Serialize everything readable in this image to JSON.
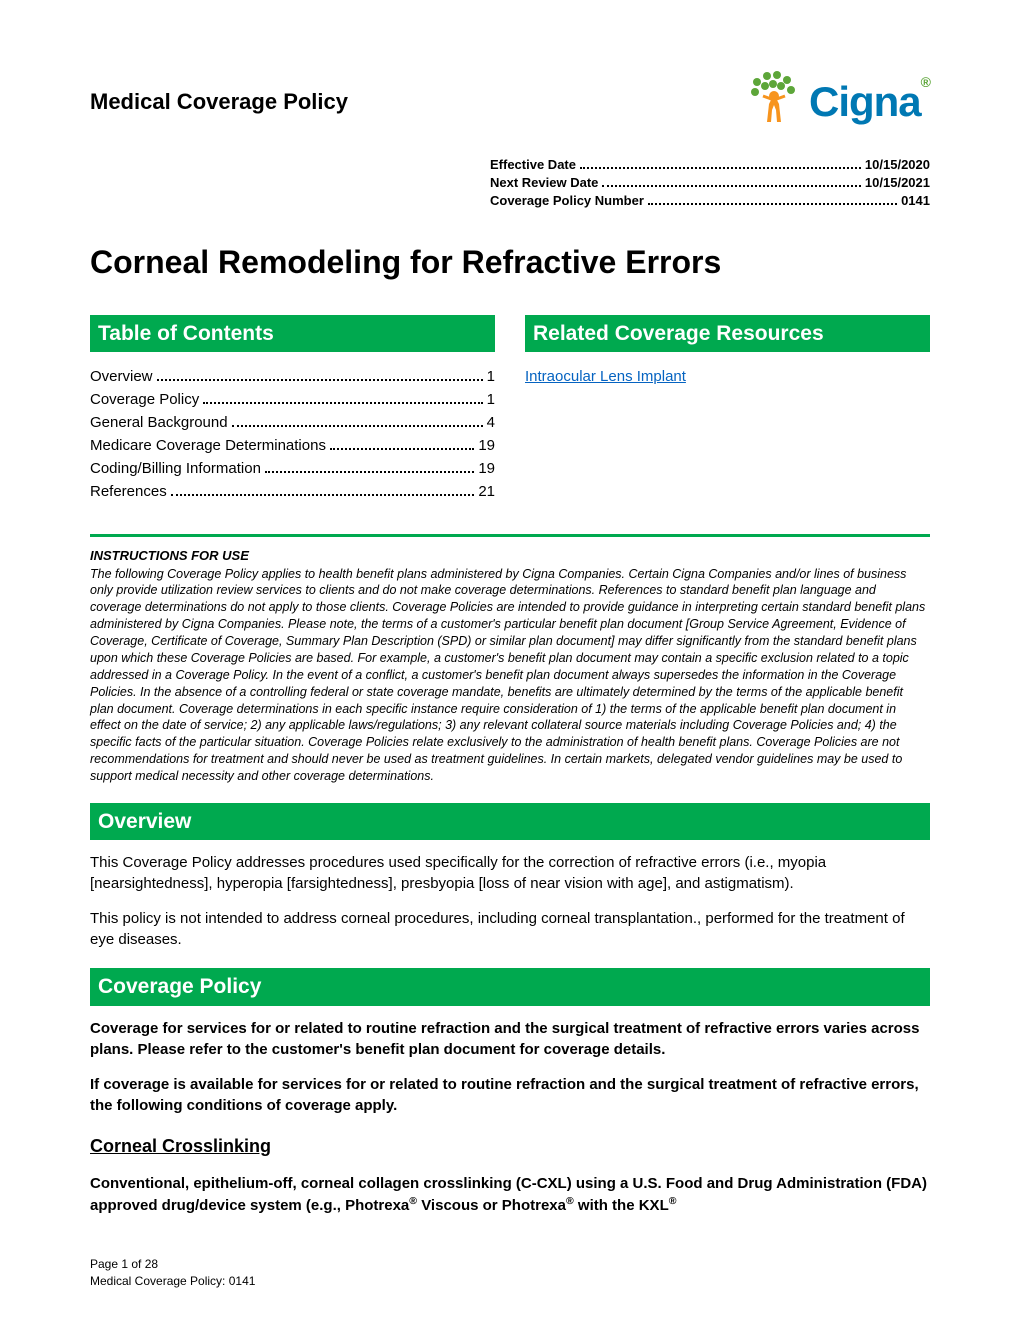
{
  "header": {
    "policy_type": "Medical Coverage Policy",
    "logo_text": "Cigna"
  },
  "meta": [
    {
      "label": "Effective Date",
      "value": "10/15/2020"
    },
    {
      "label": "Next Review Date",
      "value": "10/15/2021"
    },
    {
      "label": "Coverage Policy Number",
      "value": " 0141"
    }
  ],
  "title": "Corneal Remodeling for Refractive Errors",
  "toc": {
    "heading": "Table of Contents",
    "items": [
      {
        "label": "Overview",
        "page": "1"
      },
      {
        "label": "Coverage Policy",
        "page": "1"
      },
      {
        "label": "General Background",
        "page": "4"
      },
      {
        "label": "Medicare Coverage Determinations",
        "page": "19"
      },
      {
        "label": "Coding/Billing Information",
        "page": "19"
      },
      {
        "label": "References",
        "page": "21"
      }
    ]
  },
  "related": {
    "heading": "Related Coverage Resources",
    "links": [
      {
        "text": "Intraocular Lens Implant"
      }
    ]
  },
  "instructions": {
    "title": "INSTRUCTIONS FOR USE",
    "text": "The following Coverage Policy applies to health benefit plans administered by Cigna Companies. Certain Cigna Companies and/or lines of business only provide utilization review services to clients and do not make coverage determinations. References to standard benefit plan language and coverage determinations do not apply to those clients. Coverage Policies are intended to provide guidance in interpreting certain standard benefit plans administered by Cigna Companies. Please note, the terms of a customer's particular benefit plan document [Group Service Agreement, Evidence of Coverage, Certificate of Coverage, Summary Plan Description (SPD) or similar plan document] may differ significantly from the standard benefit plans upon which these Coverage Policies are based. For example, a customer's benefit plan document may contain a specific exclusion related to a topic addressed in a Coverage Policy. In the event of a conflict, a customer's benefit plan document always supersedes the information in the Coverage Policies. In the absence of a controlling federal or state coverage mandate, benefits are ultimately determined by the terms of the applicable benefit plan document. Coverage determinations in each specific instance require consideration of 1) the terms of the applicable benefit plan document in effect on the date of service; 2) any applicable laws/regulations; 3) any relevant collateral source materials including Coverage Policies and; 4) the specific facts of the particular situation. Coverage Policies relate exclusively to the administration of health benefit plans. Coverage Policies are not recommendations for treatment and should never be used as treatment guidelines. In certain markets, delegated vendor guidelines may be used to support medical necessity and other coverage determinations."
  },
  "sections": {
    "overview": {
      "heading": "Overview",
      "p1": "This Coverage Policy addresses procedures used specifically for the correction of refractive errors (i.e., myopia [nearsightedness], hyperopia [farsightedness], presbyopia [loss of near vision with age], and astigmatism).",
      "p2": "This policy is not intended to address corneal procedures, including corneal transplantation., performed for the treatment of eye diseases."
    },
    "coverage": {
      "heading": "Coverage Policy",
      "p1": "Coverage for services for or related to routine refraction and the surgical treatment of refractive errors varies across plans. Please refer to the customer's benefit plan document for coverage details.",
      "p2": "If coverage is available for services for or related to routine refraction and the surgical treatment of refractive errors, the following conditions of coverage apply.",
      "sub1_title": "Corneal Crosslinking",
      "sub1_p1_html": "Conventional, epithelium-off, corneal collagen crosslinking (C-CXL) using a U.S. Food and Drug Administration (FDA) approved drug/device system (e.g., Photrexa<sup>®</sup> Viscous or Photrexa<sup>®</sup> with the KXL<sup>®</sup>"
    }
  },
  "footer": {
    "page": "Page 1 of 28",
    "ref": "Medical Coverage Policy: 0141"
  },
  "colors": {
    "green": "#00a94f",
    "link_blue": "#0563c1",
    "logo_blue": "#0078b3",
    "logo_green": "#5da639"
  }
}
